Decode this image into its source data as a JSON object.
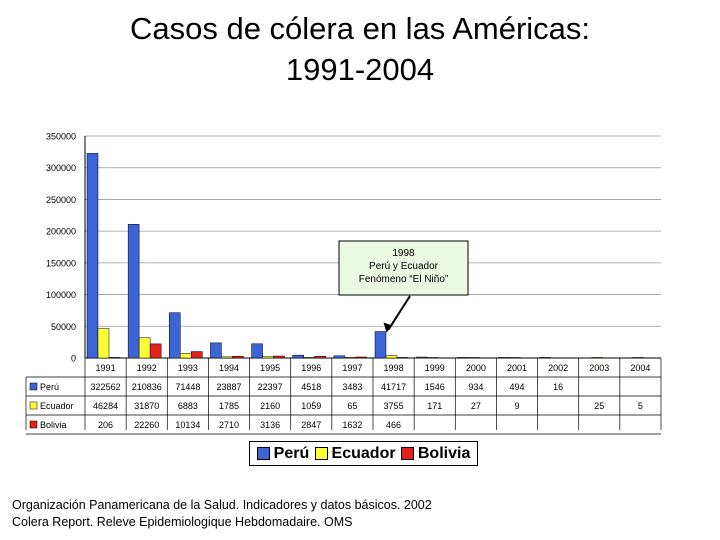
{
  "title": {
    "line1": "Casos de cólera en las Américas:",
    "line2": "1991-2004"
  },
  "colors": {
    "Perú": "#3b64d6",
    "Ecuador": "#ffff33",
    "Bolivia": "#e3201b"
  },
  "chart_data": {
    "type": "bar",
    "categories": [
      "1991",
      "1992",
      "1993",
      "1994",
      "1995",
      "1996",
      "1997",
      "1998",
      "1999",
      "2000",
      "2001",
      "2002",
      "2003",
      "2004"
    ],
    "series": [
      {
        "name": "Perú",
        "values": [
          322562,
          210836,
          71448,
          23887,
          22397,
          4518,
          3483,
          41717,
          1546,
          934,
          494,
          16,
          null,
          null
        ],
        "table": [
          "322562",
          "210836",
          "71448",
          "23887",
          "22397",
          "4518",
          "3483",
          "41717",
          "1546",
          "934",
          "494",
          "16",
          "",
          ""
        ]
      },
      {
        "name": "Ecuador",
        "values": [
          46284,
          31870,
          6883,
          1785,
          2160,
          1059,
          65,
          3755,
          171,
          27,
          9,
          null,
          25,
          5
        ],
        "table": [
          "46284",
          "31870",
          "6883",
          "1785",
          "2160",
          "1059",
          "65",
          "3755",
          "171",
          "27",
          "9",
          "",
          "25",
          "5"
        ]
      },
      {
        "name": "Bolivia",
        "values": [
          206,
          22260,
          10134,
          2710,
          3136,
          2847,
          1632,
          466,
          null,
          null,
          null,
          null,
          null,
          null
        ],
        "table": [
          "206",
          "22260",
          "10134",
          "2710",
          "3136",
          "2847",
          "1632",
          "466",
          "",
          "",
          "",
          "",
          "",
          ""
        ]
      }
    ],
    "ylim": [
      0,
      350000
    ],
    "yticks": [
      "350000",
      "300000",
      "250000",
      "200000",
      "150000",
      "100000",
      "50000",
      "0"
    ],
    "grid": true,
    "annotation": {
      "lines": [
        "1998",
        "Perú y Ecuador",
        "Fenómeno “El Niño”"
      ],
      "category": "1998"
    },
    "legend_position": "bottom"
  },
  "legend": {
    "items": [
      "Perú",
      "Ecuador",
      "Bolivia"
    ]
  },
  "source": {
    "line1": "Organización Panamericana de la Salud. Indicadores y datos básicos. 2002",
    "line2": "Colera Report. Releve Epidemiologique Hebdomadaire. OMS"
  }
}
